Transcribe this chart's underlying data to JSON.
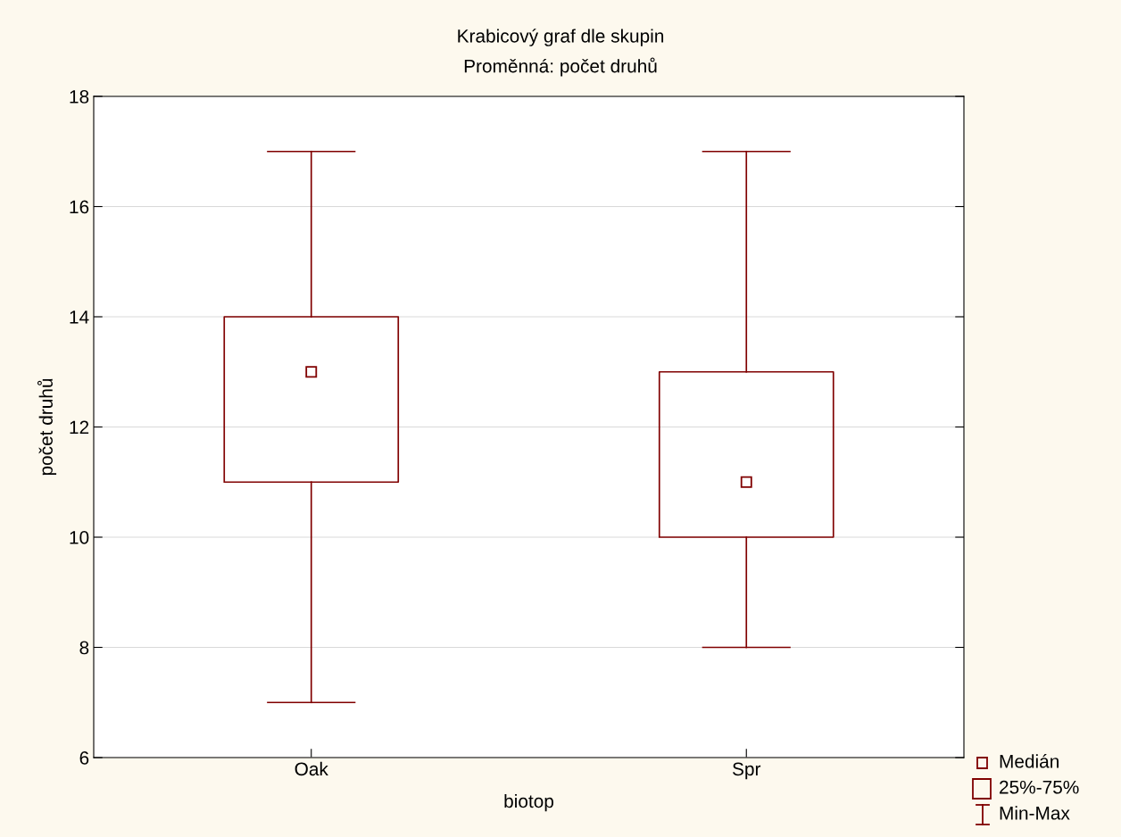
{
  "chart_data": {
    "type": "box",
    "title": "Krabicový graf dle skupin",
    "subtitle": "Proměnná: počet druhů",
    "xlabel": "biotop",
    "ylabel": "počet druhů",
    "categories": [
      "Oak",
      "Spr"
    ],
    "series": [
      {
        "color": "#800000",
        "boxes": [
          {
            "low": 7,
            "q1": 11,
            "median": 13,
            "q3": 14,
            "high": 17
          },
          {
            "low": 8,
            "q1": 10,
            "median": 11,
            "q3": 13,
            "high": 17
          }
        ]
      }
    ],
    "ylim": [
      6,
      18
    ],
    "yticks": [
      6,
      8,
      10,
      12,
      14,
      16,
      18
    ],
    "grid": "y",
    "marker": "square",
    "annotations": [
      "Medián",
      "25%-75%",
      "Min-Max"
    ]
  }
}
